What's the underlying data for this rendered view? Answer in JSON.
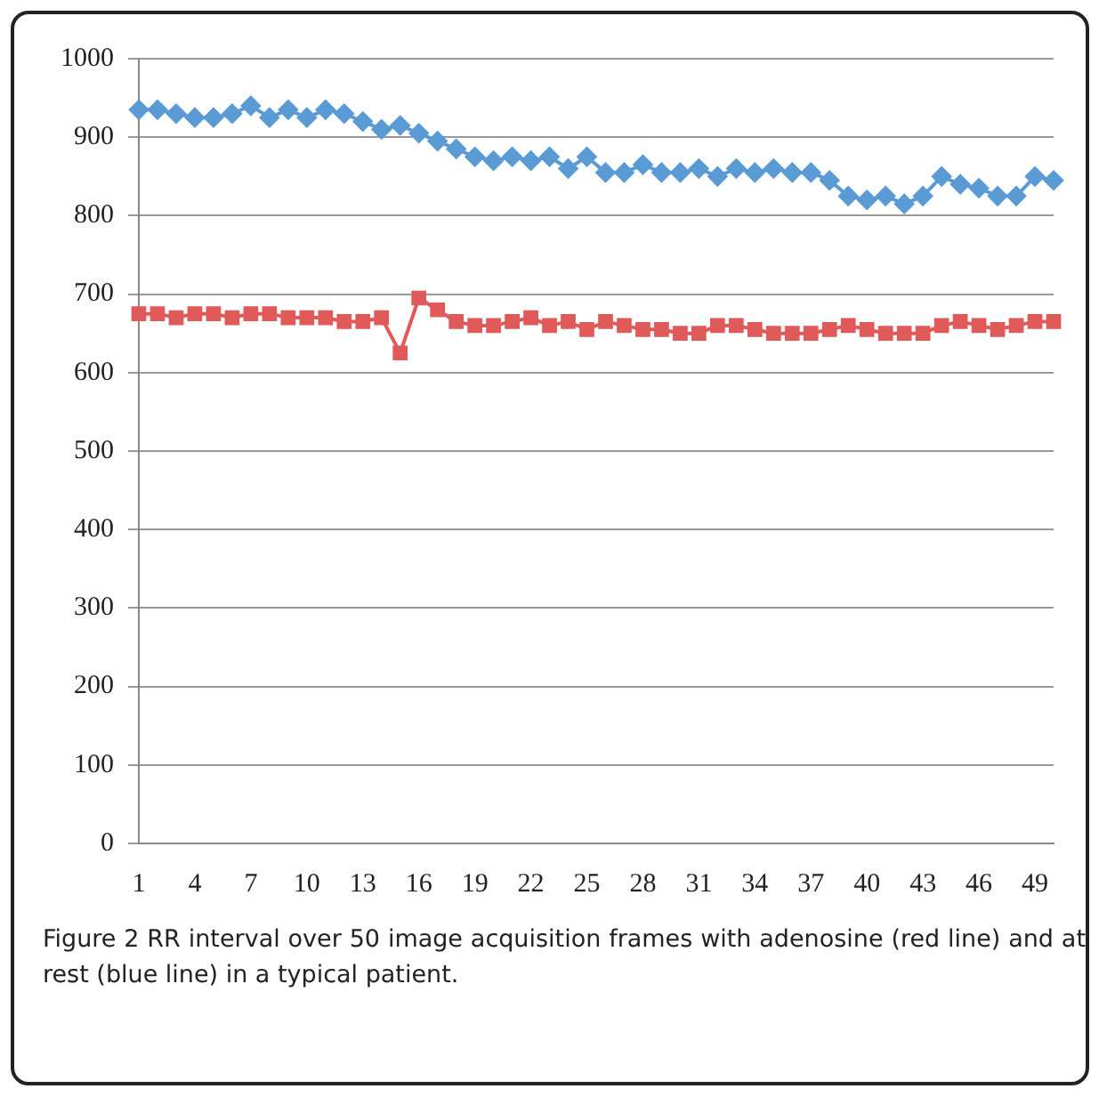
{
  "chart_data": {
    "type": "line",
    "categories": [
      "1",
      null,
      null,
      "4",
      null,
      null,
      "7",
      null,
      null,
      "10",
      null,
      null,
      "13",
      null,
      null,
      "16",
      null,
      null,
      "19",
      null,
      null,
      "22",
      null,
      null,
      "25",
      null,
      null,
      "28",
      null,
      null,
      "31",
      null,
      null,
      "34",
      null,
      null,
      "37",
      null,
      null,
      "40",
      null,
      null,
      "43",
      null,
      null,
      "46",
      null,
      null,
      "49",
      null
    ],
    "series": [
      {
        "color": "#5b9bd5",
        "values": [
          935,
          935,
          930,
          925,
          925,
          930,
          940,
          925,
          935,
          925,
          935,
          930,
          920,
          910,
          915,
          905,
          895,
          885,
          875,
          870,
          875,
          870,
          875,
          860,
          875,
          855,
          855,
          865,
          855,
          855,
          860,
          850,
          860,
          855,
          860,
          855,
          855,
          845,
          825,
          820,
          825,
          815,
          825,
          850,
          840,
          835,
          825,
          825,
          850,
          845
        ]
      },
      {
        "color": "#e05a5a",
        "marker": "square",
        "values": [
          675,
          675,
          670,
          675,
          675,
          670,
          675,
          675,
          670,
          670,
          670,
          665,
          665,
          670,
          625,
          695,
          680,
          665,
          660,
          660,
          665,
          670,
          660,
          665,
          655,
          665,
          660,
          655,
          655,
          650,
          650,
          660,
          660,
          655,
          650,
          650,
          650,
          655,
          660,
          655,
          650,
          650,
          650,
          660,
          665,
          660,
          655,
          660,
          665,
          665
        ]
      }
    ],
    "ylim": [
      0,
      1000
    ],
    "yticks": [
      0,
      100,
      200,
      300,
      400,
      500,
      600,
      700,
      800,
      900,
      1000
    ],
    "grid": "y",
    "legend": false,
    "marker": "diamond",
    "line_style": "solid",
    "annotations": [
      "Figure 2 RR interval over 50 image acquisition frames with adenosine (red line) and at rest (blue line) in a typical patient."
    ]
  }
}
